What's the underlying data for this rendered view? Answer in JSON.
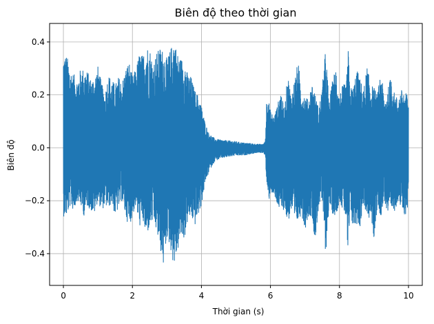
{
  "chart_data": {
    "type": "line",
    "title": "Biên độ theo thời gian",
    "xlabel": "Thời gian (s)",
    "ylabel": "Biên độ",
    "xlim": [
      -0.4,
      10.4
    ],
    "ylim": [
      -0.52,
      0.47
    ],
    "xticks": [
      0,
      2,
      4,
      6,
      8,
      10
    ],
    "yticks": [
      -0.4,
      -0.2,
      0.0,
      0.2,
      0.4
    ],
    "ytick_labels": [
      "−0.4",
      "−0.2",
      "0.0",
      "0.2",
      "0.4"
    ],
    "xtick_labels": [
      "0",
      "2",
      "4",
      "6",
      "8",
      "10"
    ],
    "grid": true,
    "line_color": "#1f77b4",
    "series": [
      {
        "x_start": 0,
        "x_end": 10,
        "envelope": [
          [
            0.0,
            0.36,
            -0.26
          ],
          [
            0.1,
            0.35,
            -0.26
          ],
          [
            0.2,
            0.3,
            -0.22
          ],
          [
            0.3,
            0.28,
            -0.24
          ],
          [
            0.4,
            0.26,
            -0.2
          ],
          [
            0.5,
            0.3,
            -0.22
          ],
          [
            0.6,
            0.3,
            -0.26
          ],
          [
            0.7,
            0.29,
            -0.22
          ],
          [
            0.8,
            0.26,
            -0.24
          ],
          [
            0.9,
            0.27,
            -0.25
          ],
          [
            1.0,
            0.31,
            -0.2
          ],
          [
            1.1,
            0.25,
            -0.24
          ],
          [
            1.2,
            0.2,
            -0.22
          ],
          [
            1.3,
            0.28,
            -0.23
          ],
          [
            1.4,
            0.26,
            -0.21
          ],
          [
            1.5,
            0.24,
            -0.26
          ],
          [
            1.6,
            0.27,
            -0.23
          ],
          [
            1.7,
            0.25,
            -0.2
          ],
          [
            1.8,
            0.3,
            -0.26
          ],
          [
            1.9,
            0.33,
            -0.3
          ],
          [
            2.0,
            0.27,
            -0.26
          ],
          [
            2.1,
            0.3,
            -0.22
          ],
          [
            2.2,
            0.36,
            -0.3
          ],
          [
            2.3,
            0.35,
            -0.28
          ],
          [
            2.4,
            0.39,
            -0.34
          ],
          [
            2.5,
            0.38,
            -0.3
          ],
          [
            2.6,
            0.32,
            -0.28
          ],
          [
            2.7,
            0.36,
            -0.32
          ],
          [
            2.8,
            0.38,
            -0.38
          ],
          [
            2.9,
            0.37,
            -0.45
          ],
          [
            3.0,
            0.34,
            -0.34
          ],
          [
            3.1,
            0.37,
            -0.38
          ],
          [
            3.2,
            0.42,
            -0.45
          ],
          [
            3.3,
            0.36,
            -0.4
          ],
          [
            3.4,
            0.34,
            -0.34
          ],
          [
            3.5,
            0.34,
            -0.35
          ],
          [
            3.6,
            0.28,
            -0.28
          ],
          [
            3.7,
            0.27,
            -0.26
          ],
          [
            3.8,
            0.22,
            -0.3
          ],
          [
            3.9,
            0.2,
            -0.26
          ],
          [
            4.0,
            0.16,
            -0.22
          ],
          [
            4.1,
            0.1,
            -0.14
          ],
          [
            4.2,
            0.06,
            -0.1
          ],
          [
            4.3,
            0.045,
            -0.07
          ],
          [
            4.4,
            0.035,
            -0.05
          ],
          [
            4.6,
            0.03,
            -0.04
          ],
          [
            4.8,
            0.028,
            -0.035
          ],
          [
            5.0,
            0.025,
            -0.03
          ],
          [
            5.2,
            0.02,
            -0.03
          ],
          [
            5.4,
            0.018,
            -0.025
          ],
          [
            5.6,
            0.015,
            -0.02
          ],
          [
            5.8,
            0.015,
            -0.02
          ],
          [
            5.85,
            0.03,
            -0.03
          ],
          [
            5.9,
            0.23,
            -0.17
          ],
          [
            5.95,
            0.18,
            -0.21
          ],
          [
            6.0,
            0.14,
            -0.16
          ],
          [
            6.1,
            0.12,
            -0.19
          ],
          [
            6.2,
            0.16,
            -0.22
          ],
          [
            6.3,
            0.22,
            -0.25
          ],
          [
            6.4,
            0.14,
            -0.23
          ],
          [
            6.5,
            0.28,
            -0.29
          ],
          [
            6.6,
            0.2,
            -0.24
          ],
          [
            6.7,
            0.26,
            -0.3
          ],
          [
            6.8,
            0.33,
            -0.28
          ],
          [
            6.9,
            0.22,
            -0.25
          ],
          [
            7.0,
            0.2,
            -0.31
          ],
          [
            7.1,
            0.18,
            -0.26
          ],
          [
            7.2,
            0.25,
            -0.26
          ],
          [
            7.3,
            0.2,
            -0.36
          ],
          [
            7.4,
            0.15,
            -0.22
          ],
          [
            7.5,
            0.23,
            -0.2
          ],
          [
            7.6,
            0.38,
            -0.41
          ],
          [
            7.7,
            0.17,
            -0.22
          ],
          [
            7.8,
            0.26,
            -0.25
          ],
          [
            7.9,
            0.31,
            -0.26
          ],
          [
            8.0,
            0.2,
            -0.2
          ],
          [
            8.1,
            0.24,
            -0.24
          ],
          [
            8.2,
            0.24,
            -0.27
          ],
          [
            8.25,
            0.39,
            -0.47
          ],
          [
            8.3,
            0.23,
            -0.25
          ],
          [
            8.4,
            0.23,
            -0.31
          ],
          [
            8.5,
            0.3,
            -0.29
          ],
          [
            8.6,
            0.26,
            -0.3
          ],
          [
            8.7,
            0.22,
            -0.21
          ],
          [
            8.8,
            0.31,
            -0.28
          ],
          [
            8.9,
            0.24,
            -0.26
          ],
          [
            9.0,
            0.23,
            -0.35
          ],
          [
            9.1,
            0.2,
            -0.22
          ],
          [
            9.2,
            0.3,
            -0.26
          ],
          [
            9.3,
            0.18,
            -0.2
          ],
          [
            9.4,
            0.22,
            -0.26
          ],
          [
            9.5,
            0.28,
            -0.25
          ],
          [
            9.6,
            0.2,
            -0.24
          ],
          [
            9.7,
            0.19,
            -0.2
          ],
          [
            9.8,
            0.22,
            -0.24
          ],
          [
            9.9,
            0.21,
            -0.26
          ],
          [
            10.0,
            0.2,
            -0.22
          ]
        ]
      }
    ]
  }
}
